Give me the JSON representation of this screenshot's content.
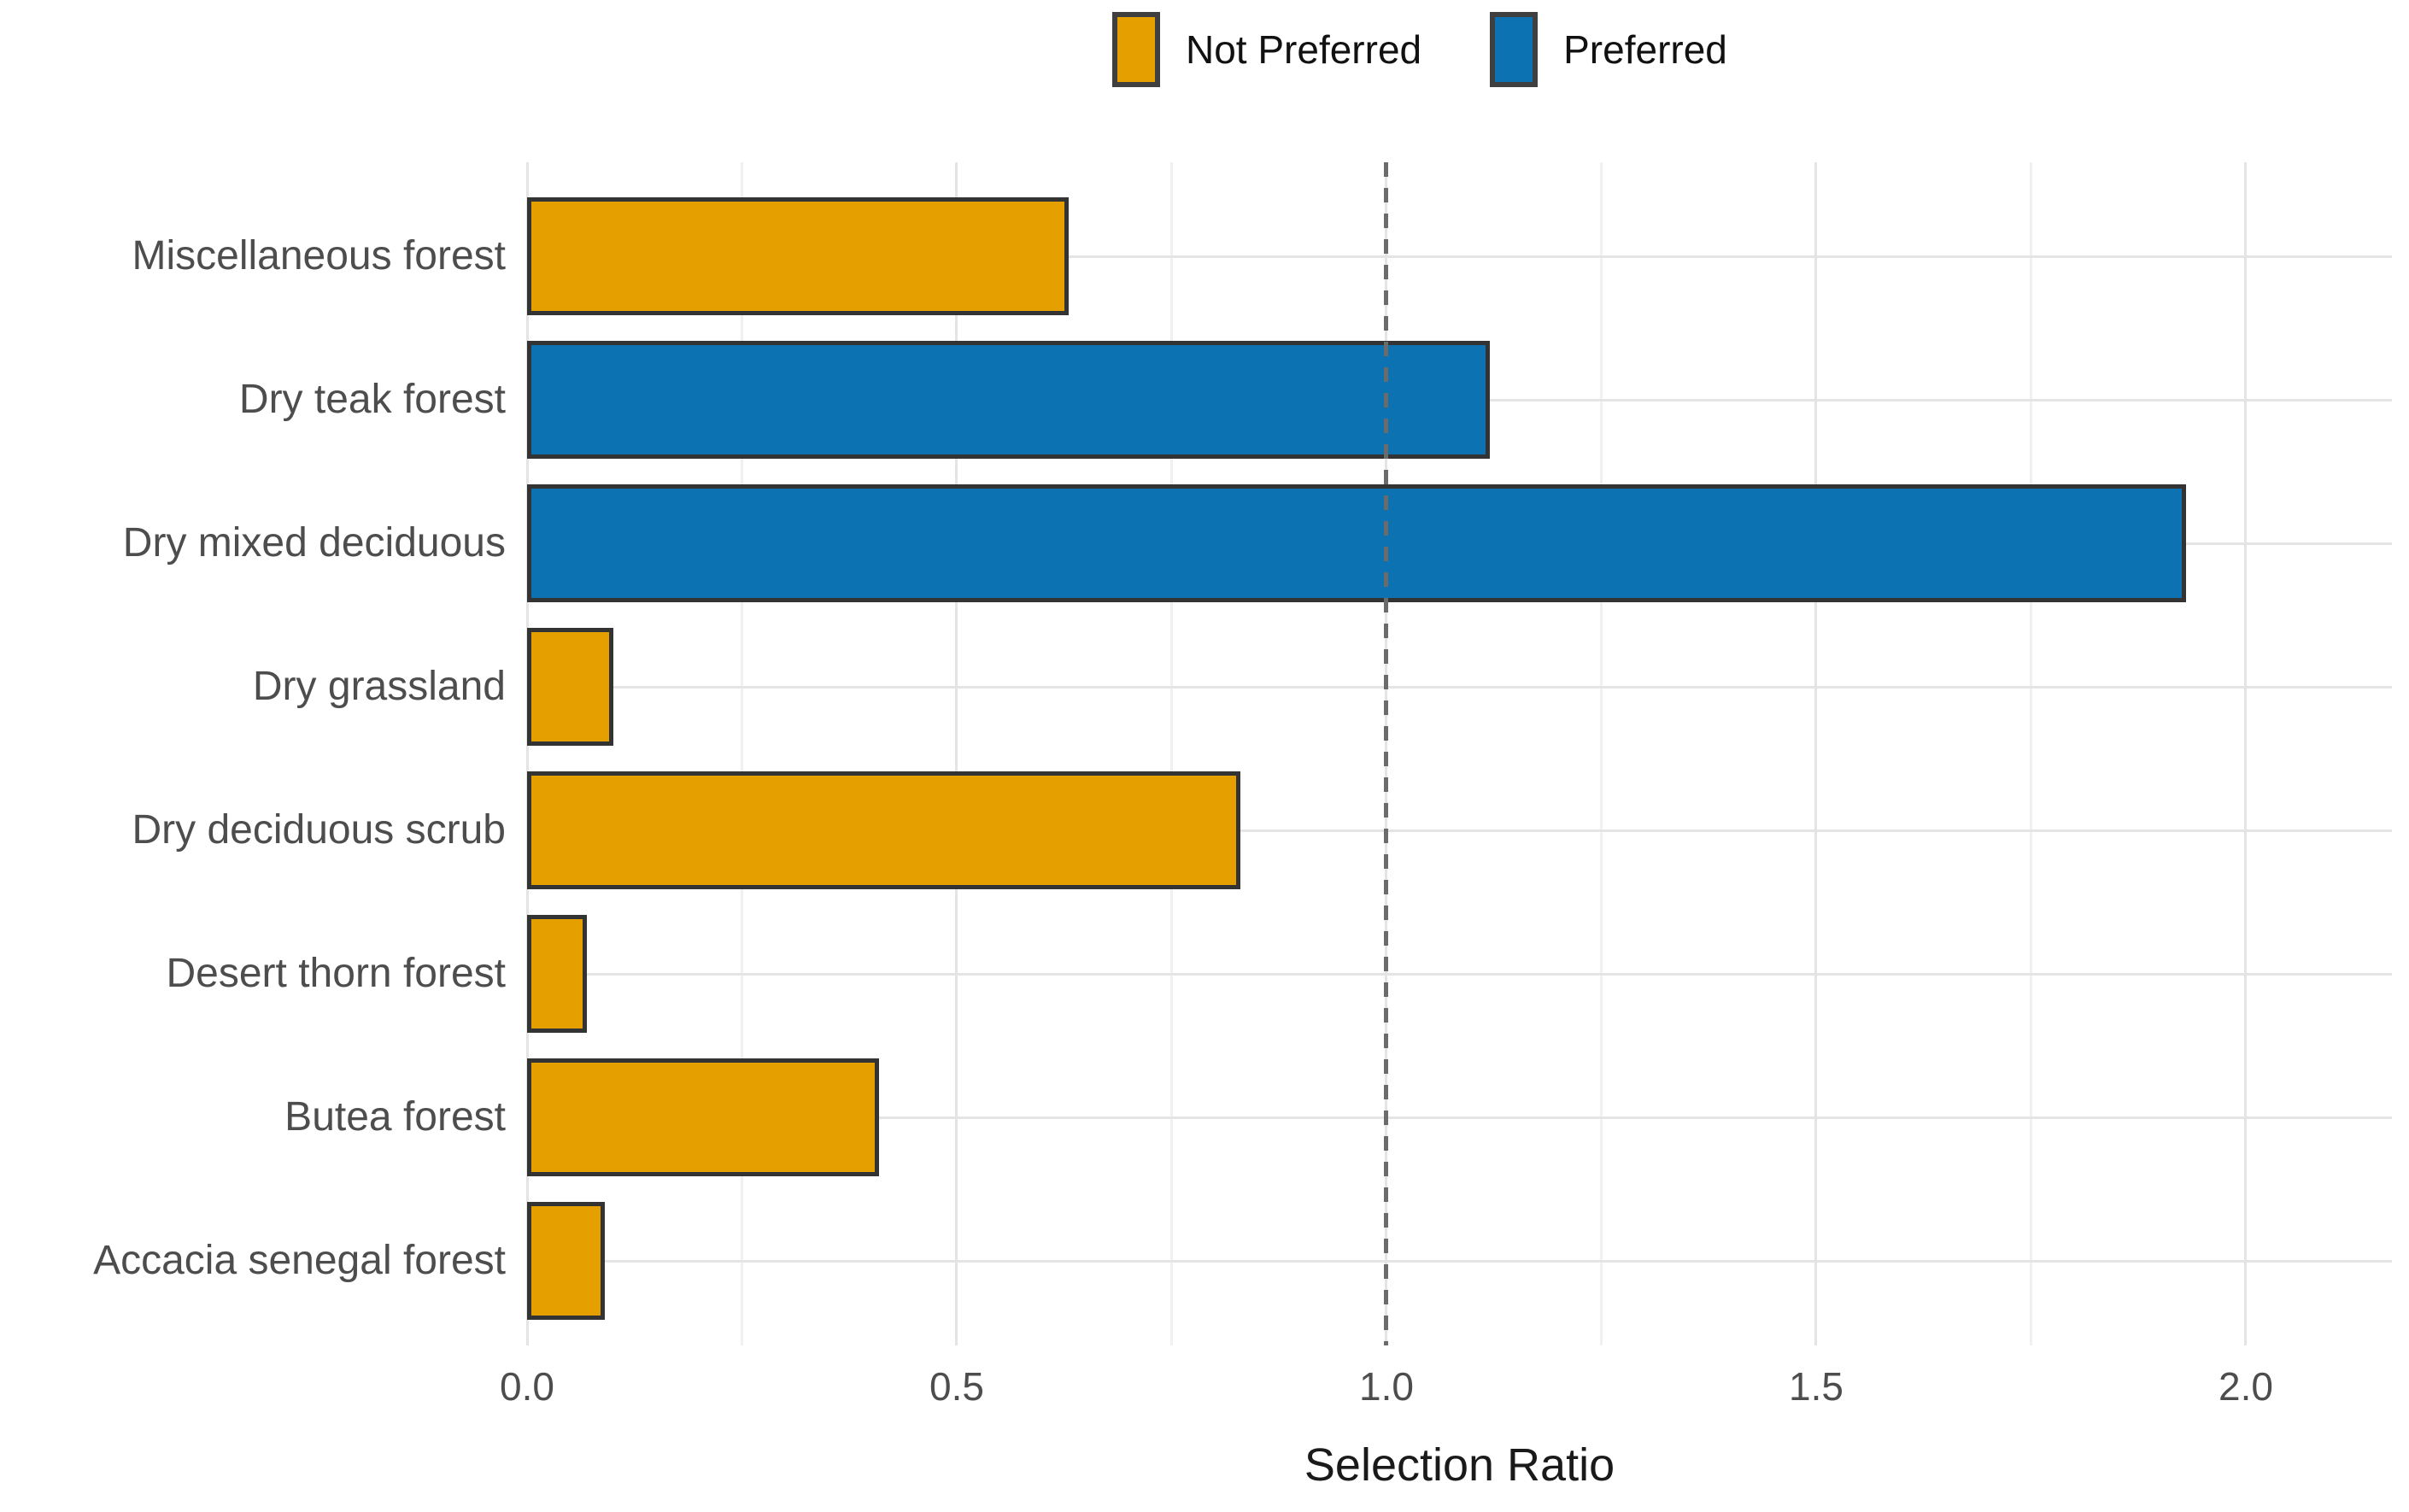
{
  "chart_data": {
    "type": "bar",
    "orientation": "horizontal",
    "title": "",
    "xlabel": "Selection Ratio",
    "ylabel": "",
    "categories": [
      "Miscellaneous forest",
      "Dry teak forest",
      "Dry mixed deciduous",
      "Dry grassland",
      "Dry deciduous scrub",
      "Desert thorn forest",
      "Butea forest",
      "Accacia senegal forest"
    ],
    "values": [
      0.63,
      1.12,
      1.93,
      0.1,
      0.83,
      0.07,
      0.41,
      0.09
    ],
    "bar_groups": [
      "Not Preferred",
      "Preferred",
      "Preferred",
      "Not Preferred",
      "Not Preferred",
      "Not Preferred",
      "Not Preferred",
      "Not Preferred"
    ],
    "group_colors": {
      "Not Preferred": "#E5A000",
      "Preferred": "#0D72B2"
    },
    "bar_border_color": "#333333",
    "xlim": [
      0,
      2.17
    ],
    "x_tick_values": [
      0,
      0.5,
      1.0,
      1.5,
      2.0
    ],
    "x_tick_labels": [
      "0.0",
      "0.5",
      "1.0",
      "1.5",
      "2.0"
    ],
    "x_minor_tick_values": [
      0.25,
      0.75,
      1.25,
      1.75
    ],
    "reference_line_x": 1.0,
    "reference_line_style": "dashed",
    "reference_line_color": "#6B6B6B",
    "grid": "major+minor vertical, major horizontal",
    "legend_position": "top",
    "legend": {
      "items": [
        {
          "label": "Not Preferred",
          "color": "#E5A000"
        },
        {
          "label": "Preferred",
          "color": "#0D72B2"
        }
      ]
    }
  }
}
